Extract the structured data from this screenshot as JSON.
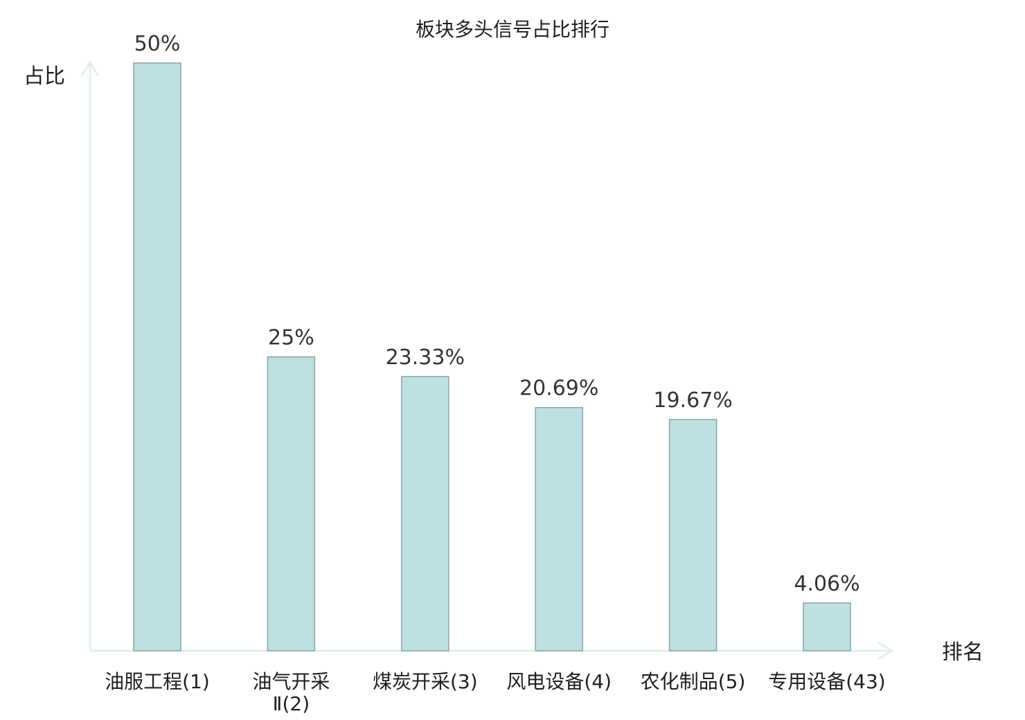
{
  "chart_data": {
    "type": "bar",
    "title": "板块多头信号占比排行",
    "ylabel": "占比",
    "xlabel": "排名",
    "categories": [
      [
        "油服工程(1)"
      ],
      [
        "油气开采",
        "Ⅱ(2)"
      ],
      [
        "煤炭开采(3)"
      ],
      [
        "风电设备(4)"
      ],
      [
        "农化制品(5)"
      ],
      [
        "专用设备(43)"
      ]
    ],
    "values": [
      50,
      25,
      23.33,
      20.69,
      19.67,
      4.06
    ],
    "value_labels": [
      "50%",
      "25%",
      "23.33%",
      "20.69%",
      "19.67%",
      "4.06%"
    ],
    "highlight_index": 5,
    "ylim": [
      0,
      50
    ],
    "grid": false,
    "colors": {
      "bar_fill": "#bde0e2",
      "bar_stroke": "#8aa3a6",
      "axis": "#dff1ee",
      "highlight_text": "#e8262a",
      "text": "#1f1f1f"
    }
  }
}
